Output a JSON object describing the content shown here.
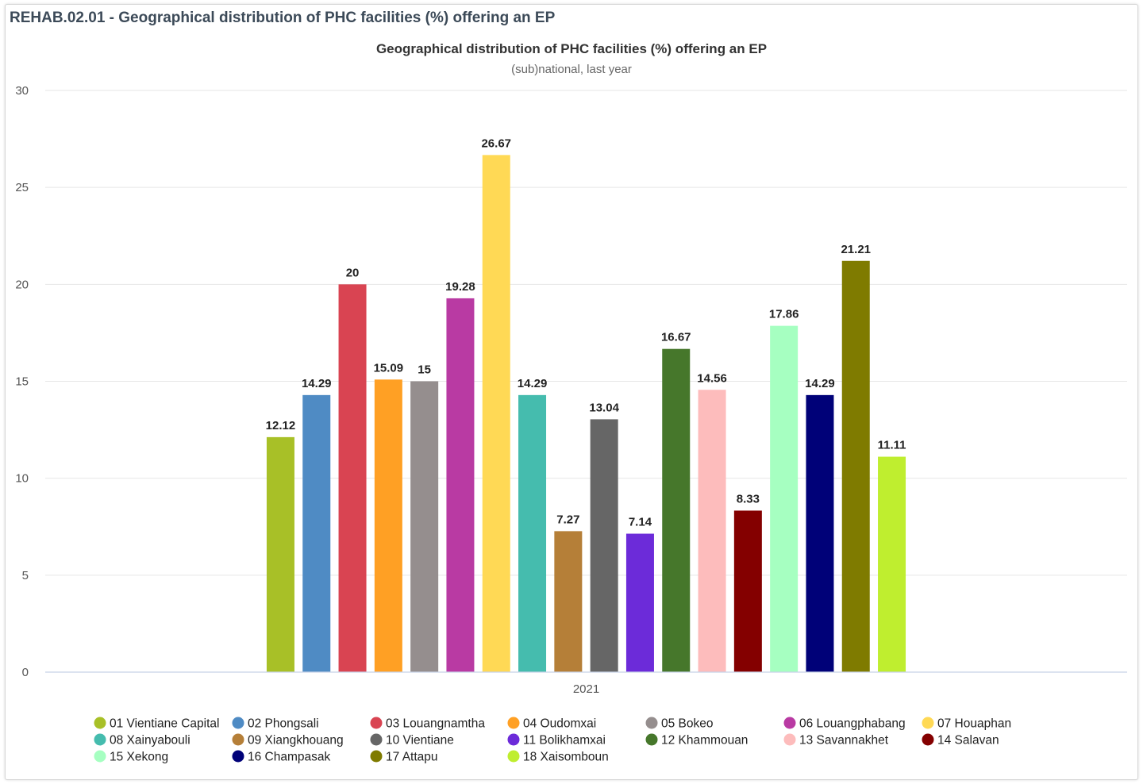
{
  "panel": {
    "title": "REHAB.02.01 - Geographical distribution of PHC facilities (%) offering an EP"
  },
  "chart_data": {
    "type": "bar",
    "title": "Geographical distribution of PHC facilities (%) offering an EP",
    "subtitle": "(sub)national, last year",
    "xlabel": "",
    "ylabel": "",
    "categories": [
      "2021"
    ],
    "ylim": [
      0,
      30
    ],
    "yticks": [
      0,
      5,
      10,
      15,
      20,
      25,
      30
    ],
    "grid": true,
    "legend_position": "bottom",
    "series": [
      {
        "name": "01 Vientiane Capital",
        "values": [
          12.12
        ],
        "color": "#a8c027"
      },
      {
        "name": "02 Phongsali",
        "values": [
          14.29
        ],
        "color": "#4f8bc4"
      },
      {
        "name": "03 Louangnamtha",
        "values": [
          20
        ],
        "color": "#d94452"
      },
      {
        "name": "04 Oudomxai",
        "values": [
          15.09
        ],
        "color": "#ffa024"
      },
      {
        "name": "05 Bokeo",
        "values": [
          15
        ],
        "color": "#958e8e"
      },
      {
        "name": "06 Louangphabang",
        "values": [
          19.28
        ],
        "color": "#b93aa3"
      },
      {
        "name": "07 Houaphan",
        "values": [
          26.67
        ],
        "color": "#ffd955"
      },
      {
        "name": "08 Xainyabouli",
        "values": [
          14.29
        ],
        "color": "#45bcae"
      },
      {
        "name": "09 Xiangkhouang",
        "values": [
          7.27
        ],
        "color": "#b57f38"
      },
      {
        "name": "10 Vientiane",
        "values": [
          13.04
        ],
        "color": "#666666"
      },
      {
        "name": "11 Bolikhamxai",
        "values": [
          7.14
        ],
        "color": "#6c2bd9"
      },
      {
        "name": "12 Khammouan",
        "values": [
          16.67
        ],
        "color": "#46772b"
      },
      {
        "name": "13 Savannakhet",
        "values": [
          14.56
        ],
        "color": "#fdbcbc"
      },
      {
        "name": "14 Salavan",
        "values": [
          8.33
        ],
        "color": "#840000"
      },
      {
        "name": "15 Xekong",
        "values": [
          17.86
        ],
        "color": "#a6ffc1"
      },
      {
        "name": "16 Champasak",
        "values": [
          14.29
        ],
        "color": "#000178"
      },
      {
        "name": "17 Attapu",
        "values": [
          21.21
        ],
        "color": "#7f7b00"
      },
      {
        "name": "18 Xaisomboun",
        "values": [
          11.11
        ],
        "color": "#bfee2f"
      }
    ]
  }
}
